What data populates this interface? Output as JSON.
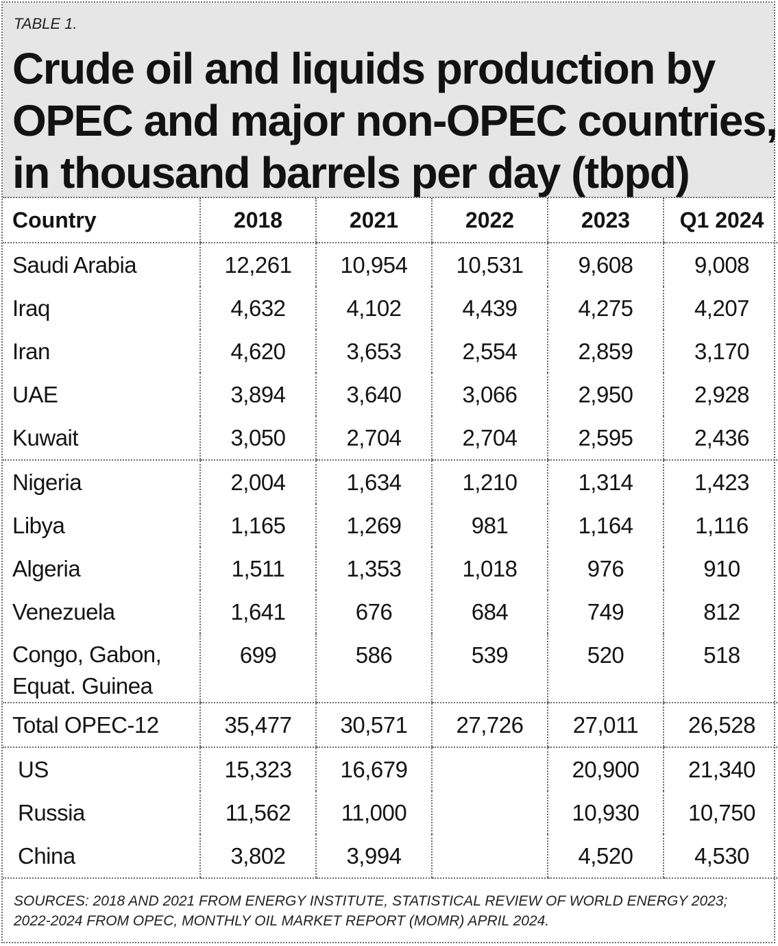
{
  "label": "TABLE 1.",
  "title_lines": [
    "Crude oil and liquids production by",
    "OPEC and major non-OPEC countries,",
    "in thousand barrels per day (tbpd)"
  ],
  "columns": [
    "Country",
    "2018",
    "2021",
    "2022",
    "2023",
    "Q1 2024"
  ],
  "rows": [
    {
      "country": "Saudi Arabia",
      "values": [
        "12,261",
        "10,954",
        "10,531",
        "9,608",
        "9,008"
      ]
    },
    {
      "country": "Iraq",
      "values": [
        "4,632",
        "4,102",
        "4,439",
        "4,275",
        "4,207"
      ]
    },
    {
      "country": "Iran",
      "values": [
        "4,620",
        "3,653",
        "2,554",
        "2,859",
        "3,170"
      ]
    },
    {
      "country": "UAE",
      "values": [
        "3,894",
        "3,640",
        "3,066",
        "2,950",
        "2,928"
      ]
    },
    {
      "country": "Kuwait",
      "values": [
        "3,050",
        "2,704",
        "2,704",
        "2,595",
        "2,436"
      ]
    },
    {
      "country": "Nigeria",
      "values": [
        "2,004",
        "1,634",
        "1,210",
        "1,314",
        "1,423"
      ]
    },
    {
      "country": "Libya",
      "values": [
        "1,165",
        "1,269",
        "981",
        "1,164",
        "1,116"
      ]
    },
    {
      "country": "Algeria",
      "values": [
        "1,511",
        "1,353",
        "1,018",
        "976",
        "910"
      ]
    },
    {
      "country": "Venezuela",
      "values": [
        "1,641",
        "676",
        "684",
        "749",
        "812"
      ]
    },
    {
      "country": "Congo, Gabon, Equat. Guinea",
      "country_lines": [
        "Congo, Gabon,",
        "Equat. Guinea"
      ],
      "values": [
        "699",
        "586",
        "539",
        "520",
        "518"
      ]
    },
    {
      "country": "Total OPEC-12",
      "values": [
        "35,477",
        "30,571",
        "27,726",
        "27,011",
        "26,528"
      ]
    },
    {
      "country": "US",
      "values": [
        "15,323",
        "16,679",
        "",
        "20,900",
        "21,340"
      ]
    },
    {
      "country": "Russia",
      "values": [
        "11,562",
        "11,000",
        "",
        "10,930",
        "10,750"
      ]
    },
    {
      "country": "China",
      "values": [
        "3,802",
        "3,994",
        "",
        "4,520",
        "4,530"
      ]
    }
  ],
  "sources_lines": [
    "SOURCES: 2018 AND 2021 FROM ENERGY INSTITUTE, STATISTICAL REVIEW OF WORLD ENERGY 2023;",
    "2022-2024 FROM OPEC, MONTHLY OIL MARKET REPORT (MOMR) APRIL 2024."
  ]
}
